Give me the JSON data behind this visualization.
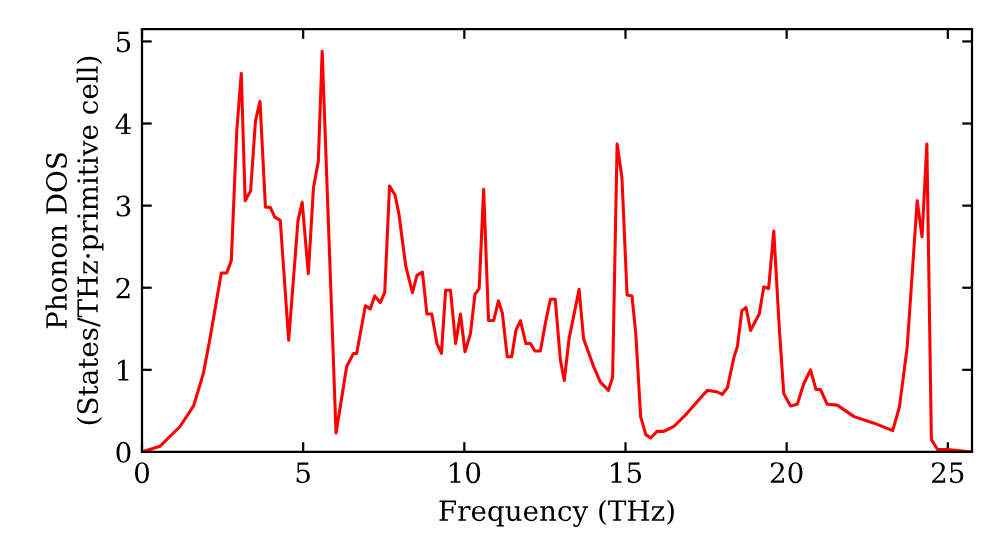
{
  "chart_data": {
    "type": "line",
    "xlabel": "Frequency (THz)",
    "ylabel": "Phonon DOS\n(States/THz·primitive cell)",
    "xlim": [
      0,
      25.75
    ],
    "ylim": [
      0,
      5.15
    ],
    "xticks": [
      0,
      5,
      10,
      15,
      20,
      25
    ],
    "yticks": [
      0,
      1,
      2,
      3,
      4,
      5
    ],
    "grid": false,
    "legend": false,
    "marker": "none",
    "line_style": "solid",
    "series": [
      {
        "color": "#ff0000",
        "x": [
          0,
          0.56,
          1.18,
          1.6,
          1.9,
          2.1,
          2.46,
          2.63,
          2.77,
          2.94,
          3.08,
          3.2,
          3.37,
          3.52,
          3.66,
          3.83,
          3.98,
          4.12,
          4.29,
          4.55,
          4.84,
          4.97,
          5.16,
          5.32,
          5.47,
          5.59,
          6.02,
          6.35,
          6.56,
          6.66,
          6.93,
          7.08,
          7.22,
          7.39,
          7.53,
          7.68,
          7.85,
          7.97,
          8.18,
          8.39,
          8.53,
          8.7,
          8.84,
          8.99,
          9.15,
          9.29,
          9.42,
          9.57,
          9.73,
          9.88,
          10.02,
          10.19,
          10.33,
          10.46,
          10.6,
          10.75,
          10.91,
          11.06,
          11.18,
          11.33,
          11.47,
          11.6,
          11.74,
          11.91,
          12.05,
          12.19,
          12.36,
          12.53,
          12.67,
          12.82,
          12.98,
          13.1,
          13.25,
          13.56,
          13.7,
          14.01,
          14.22,
          14.47,
          14.6,
          14.74,
          14.89,
          15.05,
          15.2,
          15.32,
          15.47,
          15.63,
          15.78,
          15.98,
          16.19,
          16.5,
          16.91,
          17.33,
          17.54,
          17.85,
          18.0,
          18.16,
          18.37,
          18.47,
          18.61,
          18.74,
          18.88,
          19.15,
          19.29,
          19.44,
          19.6,
          19.77,
          19.91,
          20.12,
          20.33,
          20.53,
          20.74,
          20.91,
          21.05,
          21.26,
          21.57,
          22.09,
          22.71,
          23.29,
          23.5,
          23.74,
          24.05,
          24.2,
          24.35,
          24.49,
          24.68,
          24.99,
          25.7
        ],
        "values": [
          0,
          0.07,
          0.31,
          0.56,
          0.95,
          1.36,
          2.18,
          2.18,
          2.33,
          3.91,
          4.61,
          3.06,
          3.18,
          4.03,
          4.27,
          2.98,
          2.98,
          2.86,
          2.82,
          1.36,
          2.82,
          3.04,
          2.17,
          3.22,
          3.54,
          4.88,
          0.23,
          1.04,
          1.2,
          1.2,
          1.78,
          1.74,
          1.9,
          1.82,
          1.94,
          3.24,
          3.13,
          2.9,
          2.27,
          1.94,
          2.15,
          2.19,
          1.68,
          1.68,
          1.32,
          1.2,
          1.97,
          1.97,
          1.32,
          1.68,
          1.22,
          1.44,
          1.92,
          1.99,
          3.2,
          1.6,
          1.6,
          1.84,
          1.69,
          1.16,
          1.16,
          1.48,
          1.6,
          1.32,
          1.32,
          1.23,
          1.23,
          1.6,
          1.86,
          1.86,
          1.12,
          0.87,
          1.38,
          1.98,
          1.38,
          1.04,
          0.85,
          0.75,
          0.91,
          3.75,
          3.34,
          1.91,
          1.9,
          1.44,
          0.43,
          0.21,
          0.17,
          0.25,
          0.25,
          0.31,
          0.47,
          0.66,
          0.75,
          0.73,
          0.7,
          0.78,
          1.16,
          1.28,
          1.72,
          1.76,
          1.48,
          1.68,
          2.01,
          1.99,
          2.69,
          1.52,
          0.71,
          0.56,
          0.58,
          0.83,
          1.0,
          0.76,
          0.76,
          0.58,
          0.57,
          0.43,
          0.35,
          0.26,
          0.55,
          1.28,
          3.06,
          2.62,
          3.75,
          0.15,
          0.03,
          0.03,
          0
        ]
      }
    ]
  }
}
